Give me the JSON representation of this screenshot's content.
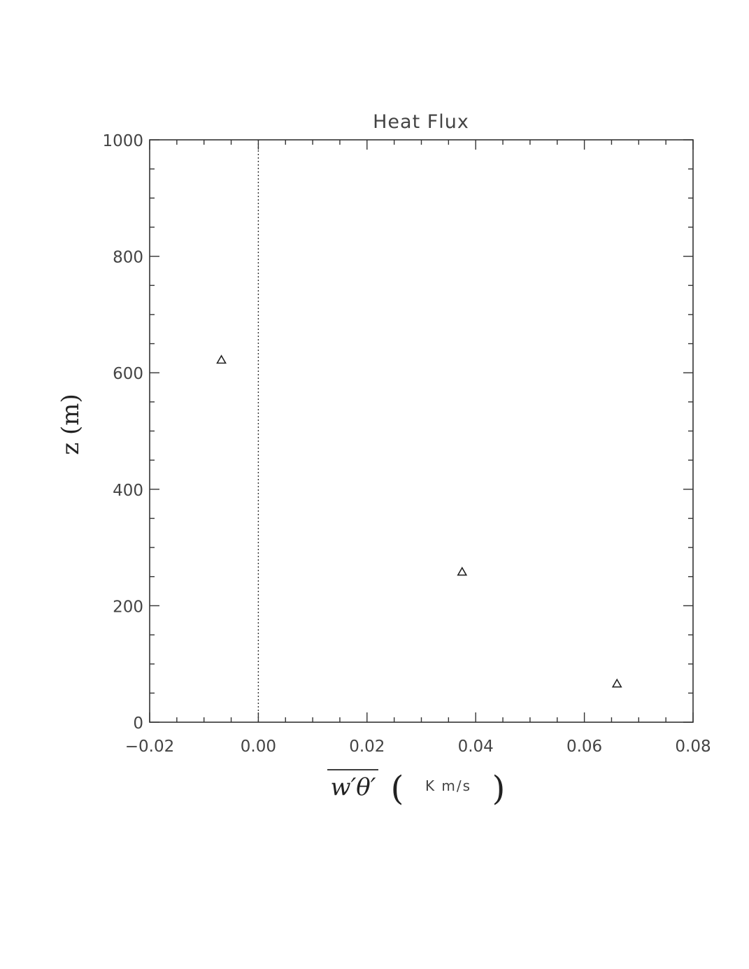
{
  "chart_data": {
    "type": "scatter",
    "title": "Heat Flux",
    "xlabel_math": "w′θ′",
    "xlabel_unit": "K m/s",
    "ylabel": "z (m)",
    "xlim": [
      -0.02,
      0.08
    ],
    "ylim": [
      0,
      1000
    ],
    "x_ticks": [
      "−0.02",
      "0.00",
      "0.02",
      "0.04",
      "0.06",
      "0.08"
    ],
    "y_ticks": [
      "0",
      "200",
      "400",
      "600",
      "800",
      "1000"
    ],
    "x_tick_values": [
      -0.02,
      0.0,
      0.02,
      0.04,
      0.06,
      0.08
    ],
    "y_tick_values": [
      0,
      200,
      400,
      600,
      800,
      1000
    ],
    "x_minor_step": 0.005,
    "y_minor_step": 50,
    "reference_line": {
      "x": 0.0,
      "style": "dotted"
    },
    "marker": "triangle-open",
    "grid": false,
    "series": [
      {
        "points": [
          {
            "x": -0.0068,
            "y": 622
          },
          {
            "x": 0.0375,
            "y": 258
          },
          {
            "x": 0.066,
            "y": 66
          }
        ]
      }
    ]
  }
}
